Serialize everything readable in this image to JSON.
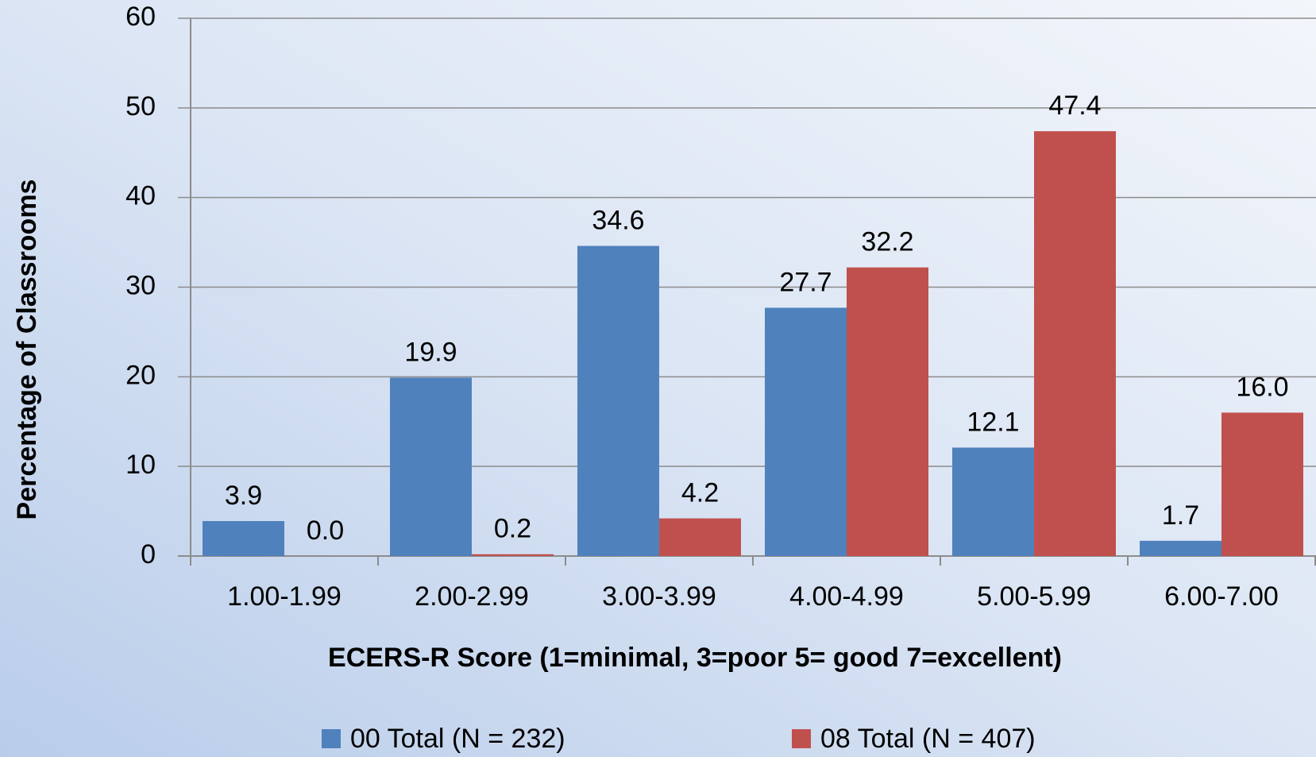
{
  "chart_data": {
    "type": "bar",
    "x_label": "ECERS-R Score (1=minimal, 3=poor 5= good 7=excellent)",
    "y_label": "Percentage of Classrooms",
    "categories": [
      "1.00-1.99",
      "2.00-2.99",
      "3.00-3.99",
      "4.00-4.99",
      "5.00-5.99",
      "6.00-7.00"
    ],
    "series": [
      {
        "name": "00 Total (N = 232)",
        "color": "#4f81bd",
        "values": [
          3.9,
          19.9,
          34.6,
          27.7,
          12.1,
          1.7
        ],
        "value_labels": [
          "3.9",
          "19.9",
          "34.6",
          "27.7",
          "12.1",
          "1.7"
        ]
      },
      {
        "name": "08 Total (N = 407)",
        "color": "#c0504d",
        "values": [
          0,
          0.2,
          4.2,
          32.2,
          47.4,
          16
        ],
        "value_labels": [
          "0.0",
          "0.2",
          "4.2",
          "32.2",
          "47.4",
          "16.0"
        ]
      }
    ],
    "ylim": [
      0,
      60
    ],
    "yticks": [
      0,
      10,
      20,
      30,
      40,
      50,
      60
    ],
    "grid": true,
    "legend": "bottom"
  }
}
